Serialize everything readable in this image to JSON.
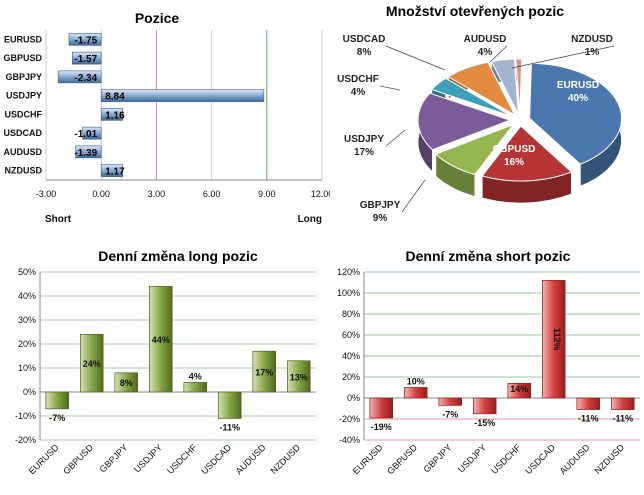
{
  "colors": {
    "long_green": "#6e8a2e",
    "short_red": "#c0292b",
    "bar_blue": "#4f79a8",
    "axis_green": "#4aa64a",
    "axis_red": "#d04040"
  },
  "chart_data": [
    {
      "type": "bar",
      "orientation": "horizontal",
      "title": "Pozice",
      "categories": [
        "EURUSD",
        "GBPUSD",
        "GBPJPY",
        "USDJPY",
        "USDCHF",
        "USDCAD",
        "AUDUSD",
        "NZDUSD"
      ],
      "values": [
        -1.75,
        -1.57,
        -2.34,
        8.84,
        1.16,
        -1.01,
        -1.39,
        1.17
      ],
      "value_labels": [
        "-1.75",
        "-1.57",
        "-2.34",
        "8.84",
        "1.16",
        "-1.01",
        "-1.39",
        "1.17"
      ],
      "xlim": [
        -3,
        12
      ],
      "xticks": [
        "-3.00",
        "0.00",
        "3.00",
        "6.00",
        "9.00",
        "12.00"
      ],
      "left_label": "Short",
      "right_label": "Long",
      "grid": true
    },
    {
      "type": "pie",
      "title": "Množství otevřených pozic",
      "categories": [
        "EURUSD",
        "GBPUSD",
        "GBPJPY",
        "USDJPY",
        "USDCHF",
        "USDCAD",
        "AUDUSD",
        "NZDUSD"
      ],
      "values": [
        40,
        16,
        9,
        17,
        4,
        8,
        4,
        1
      ],
      "value_labels": [
        "40%",
        "16%",
        "9%",
        "17%",
        "4%",
        "8%",
        "4%",
        "1%"
      ],
      "colors": [
        "#4a77ad",
        "#b73436",
        "#96b450",
        "#7b5c98",
        "#3e9fba",
        "#e38b3e",
        "#a4b4cc",
        "#e48b8b"
      ]
    },
    {
      "type": "bar",
      "title": "Denní změna long pozic",
      "categories": [
        "EURUSD",
        "GBPUSD",
        "GBPJPY",
        "USDJPY",
        "USDCHF",
        "USDCAD",
        "AUDUSD",
        "NZDUSD"
      ],
      "values": [
        -7,
        24,
        8,
        44,
        4,
        -11,
        17,
        13
      ],
      "value_labels": [
        "-7%",
        "24%",
        "8%",
        "44%",
        "4%",
        "-11%",
        "17%",
        "13%"
      ],
      "ylim": [
        -20,
        50
      ],
      "yticks": [
        "-20%",
        "-10%",
        "0%",
        "10%",
        "20%",
        "30%",
        "40%",
        "50%"
      ],
      "grid": true
    },
    {
      "type": "bar",
      "title": "Denní změna short pozic",
      "categories": [
        "EURUSD",
        "GBPUSD",
        "GBPJPY",
        "USDJPY",
        "USDCHF",
        "USDCAD",
        "AUDUSD",
        "NZDUSD"
      ],
      "values": [
        -19,
        10,
        -7,
        -15,
        14,
        112,
        -11,
        -11
      ],
      "value_labels": [
        "-19%",
        "10%",
        "-7%",
        "-15%",
        "14%",
        "112%",
        "-11%",
        "-11%"
      ],
      "ylim": [
        -40,
        120
      ],
      "yticks": [
        "-40%",
        "-20%",
        "0%",
        "20%",
        "40%",
        "60%",
        "80%",
        "100%",
        "120%"
      ],
      "grid": true
    }
  ]
}
